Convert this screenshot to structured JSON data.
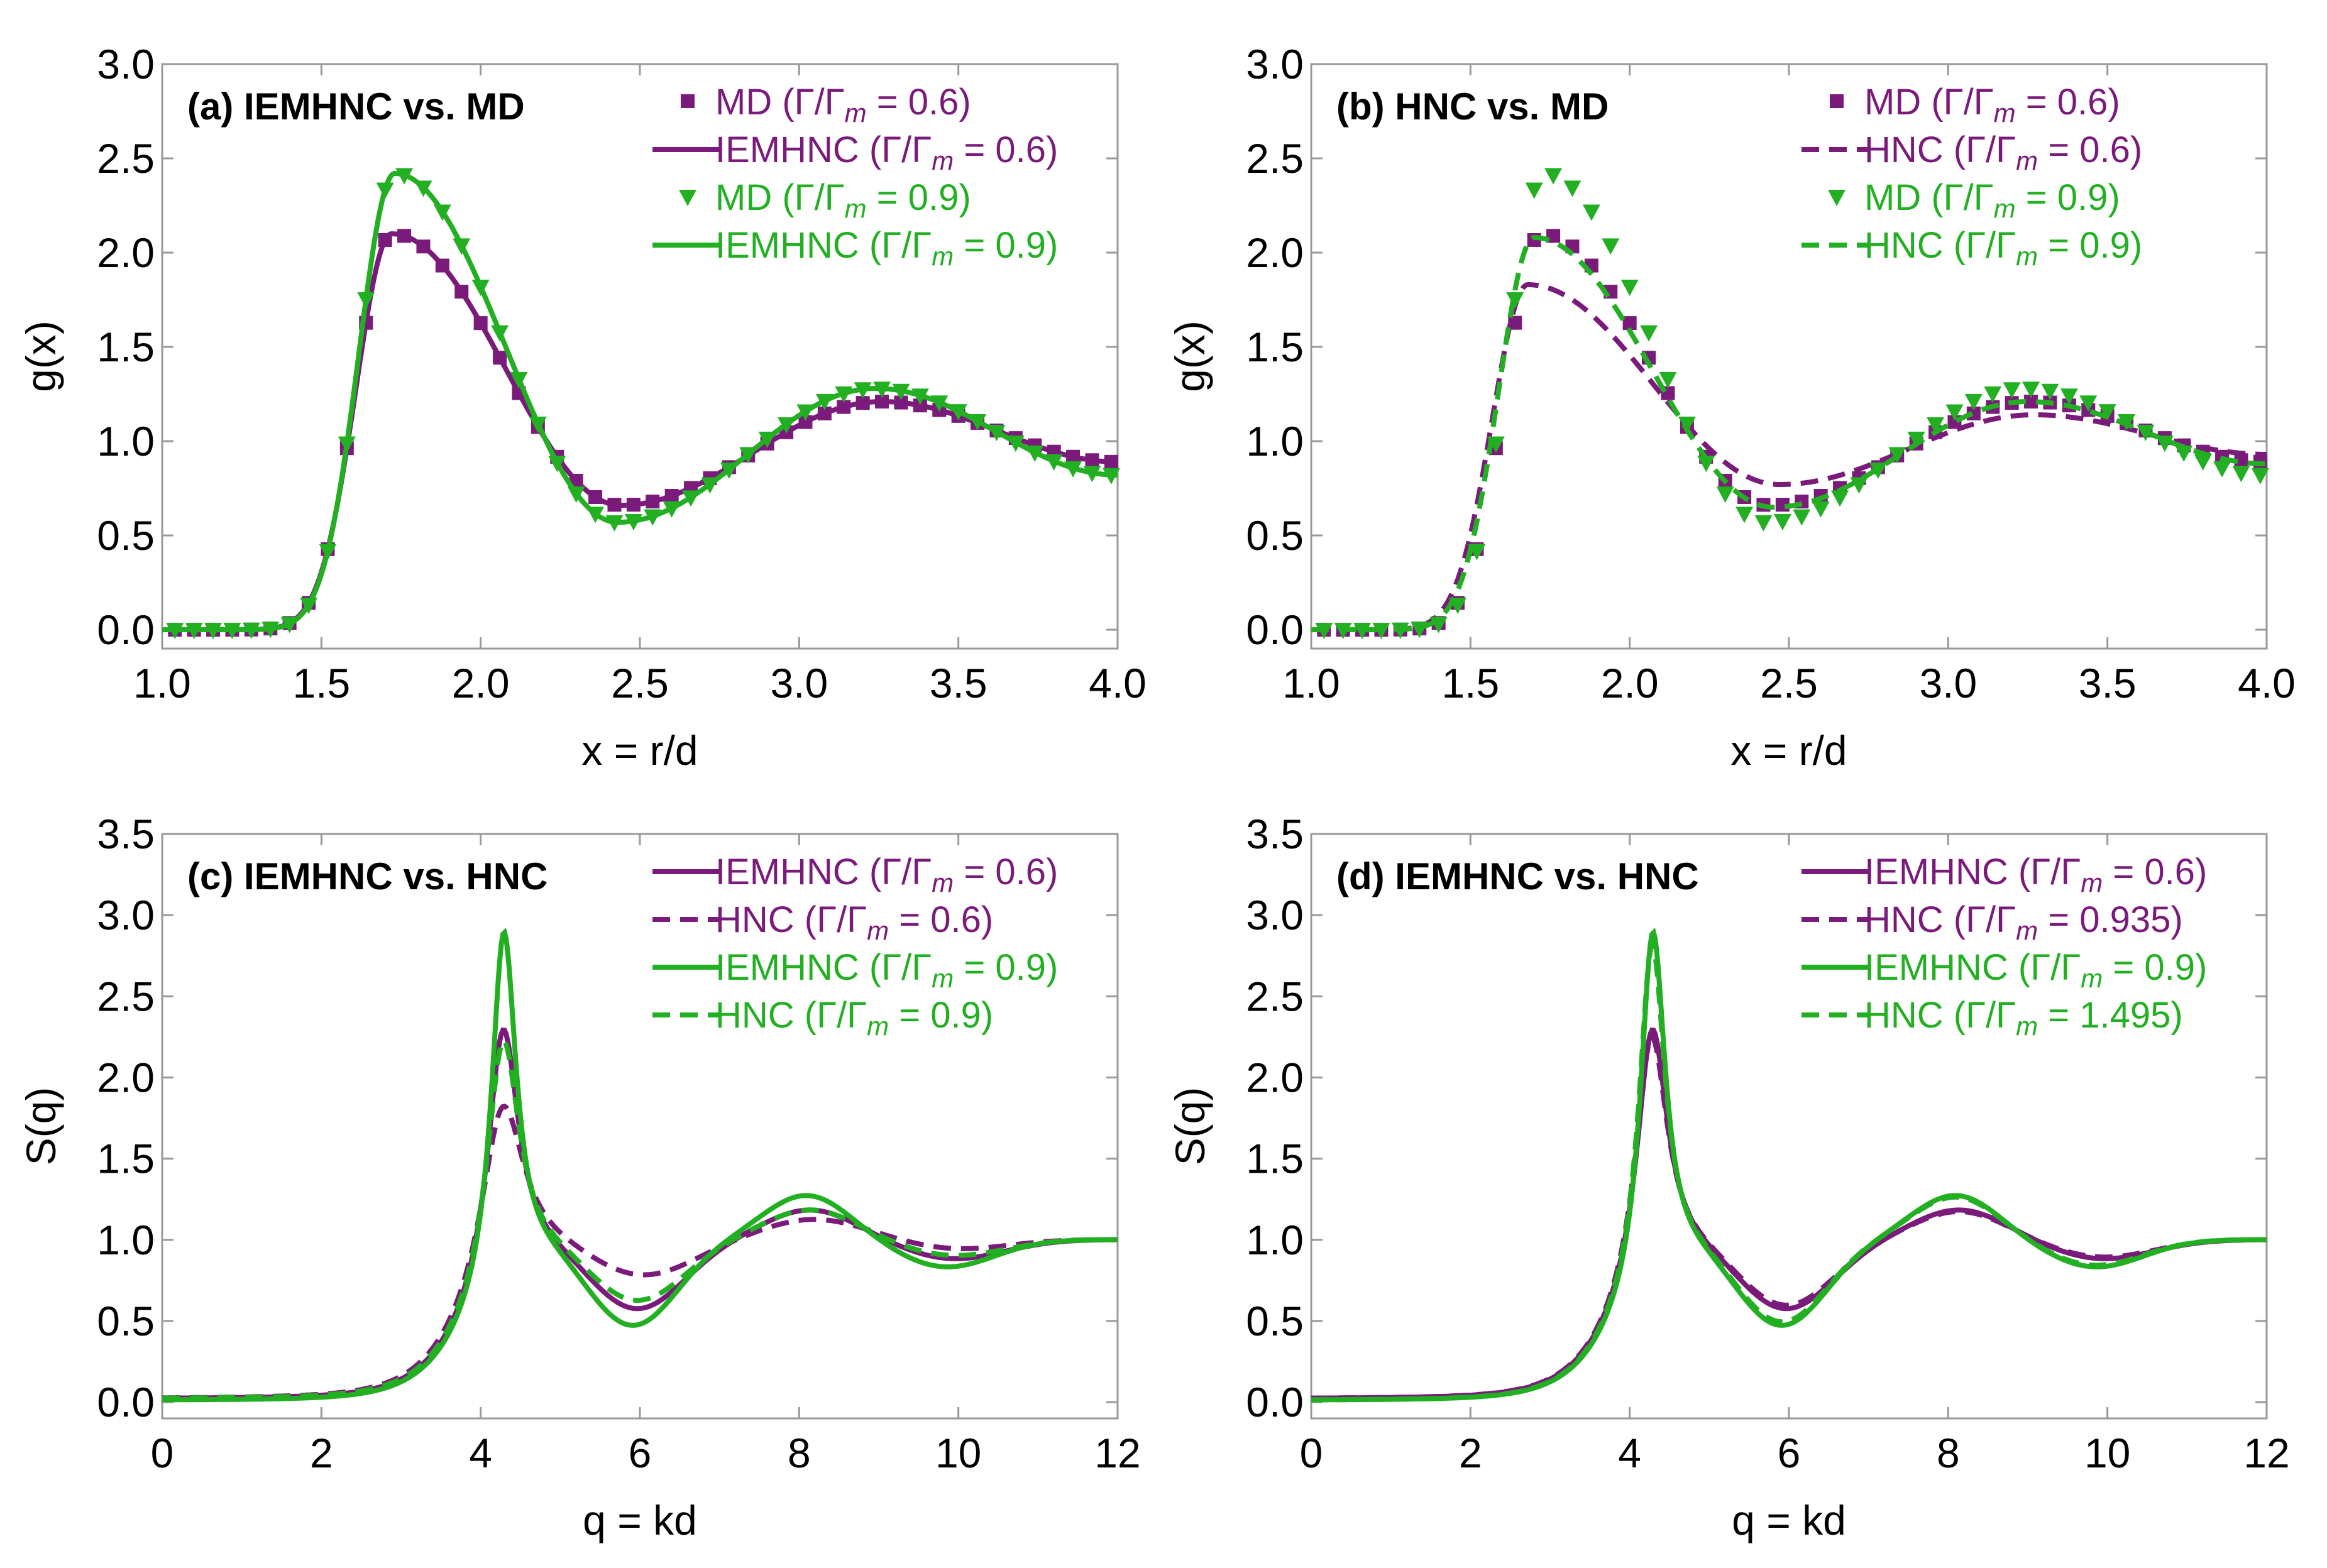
{
  "colors": {
    "purple": "#7a1a7a",
    "green": "#22b022"
  },
  "chart_data": [
    {
      "id": "a",
      "type": "line",
      "title": "(a) IEMHNC vs. MD",
      "xlabel": "x = r/d",
      "ylabel": "g(x)",
      "xlim": [
        1.0,
        4.0
      ],
      "ylim": [
        -0.1,
        3.0
      ],
      "xticks": [
        "1.0",
        "1.5",
        "2.0",
        "2.5",
        "3.0",
        "3.5",
        "4.0"
      ],
      "yticks": [
        "0.0",
        "0.5",
        "1.0",
        "1.5",
        "2.0",
        "2.5",
        "3.0"
      ],
      "legend": [
        {
          "pre": "MD (Γ/Γ",
          "post": " = 0.6)",
          "color": "purple",
          "style": "square"
        },
        {
          "pre": "IEMHNC (Γ/Γ",
          "post": " = 0.6)",
          "color": "purple",
          "style": "solid"
        },
        {
          "pre": "MD (Γ/Γ",
          "post": " = 0.9)",
          "color": "green",
          "style": "triangle"
        },
        {
          "pre": "IEMHNC (Γ/Γ",
          "post": " = 0.9)",
          "color": "green",
          "style": "solid"
        }
      ],
      "series": [
        {
          "name": "MD (Γ/Γm = 0.6)",
          "color": "purple",
          "style": "square",
          "peak": {
            "x0": 1.5,
            "x1": 1.72,
            "y1": 2.1,
            "m": 1.16,
            "x2": 2.44,
            "y2": 0.66,
            "x3": 3.26,
            "y3": 1.21,
            "x4": 4.0,
            "y4": 0.89,
            "k": 9.5
          }
        },
        {
          "name": "IEMHNC (Γ/Γm = 0.6)",
          "color": "purple",
          "style": "solid",
          "peak": {
            "x0": 1.5,
            "x1": 1.72,
            "y1": 2.1,
            "m": 1.16,
            "x2": 2.44,
            "y2": 0.66,
            "x3": 3.26,
            "y3": 1.21,
            "x4": 4.0,
            "y4": 0.89,
            "k": 9.5
          }
        },
        {
          "name": "MD (Γ/Γm = 0.9)",
          "color": "green",
          "style": "triangle",
          "peak": {
            "x0": 1.56,
            "x1": 1.73,
            "y1": 2.42,
            "m": 1.3,
            "x2": 2.43,
            "y2": 0.57,
            "x3": 3.24,
            "y3": 1.28,
            "x4": 4.0,
            "y4": 0.82,
            "k": 11.5
          }
        },
        {
          "name": "IEMHNC (Γ/Γm = 0.9)",
          "color": "green",
          "style": "solid",
          "peak": {
            "x0": 1.56,
            "x1": 1.73,
            "y1": 2.42,
            "m": 1.3,
            "x2": 2.43,
            "y2": 0.57,
            "x3": 3.24,
            "y3": 1.28,
            "x4": 4.0,
            "y4": 0.82,
            "k": 11.5
          }
        }
      ]
    },
    {
      "id": "b",
      "type": "line",
      "title": "(b) HNC vs. MD",
      "xlabel": "x = r/d",
      "ylabel": "g(x)",
      "xlim": [
        1.0,
        4.0
      ],
      "ylim": [
        -0.1,
        3.0
      ],
      "xticks": [
        "1.0",
        "1.5",
        "2.0",
        "2.5",
        "3.0",
        "3.5",
        "4.0"
      ],
      "yticks": [
        "0.0",
        "0.5",
        "1.0",
        "1.5",
        "2.0",
        "2.5",
        "3.0"
      ],
      "legend": [
        {
          "pre": "MD (Γ/Γ",
          "post": " = 0.6)",
          "color": "purple",
          "style": "square"
        },
        {
          "pre": "HNC (Γ/Γ",
          "post": " = 0.6)",
          "color": "purple",
          "style": "dashed"
        },
        {
          "pre": "MD (Γ/Γ",
          "post": " = 0.9)",
          "color": "green",
          "style": "triangle"
        },
        {
          "pre": "HNC (Γ/Γ",
          "post": " = 0.9)",
          "color": "green",
          "style": "dashed"
        }
      ],
      "series": [
        {
          "name": "MD (Γ/Γm = 0.6)",
          "color": "purple",
          "style": "square",
          "peak": {
            "x0": 1.5,
            "x1": 1.72,
            "y1": 2.1,
            "m": 1.16,
            "x2": 2.44,
            "y2": 0.66,
            "x3": 3.26,
            "y3": 1.21,
            "x4": 4.0,
            "y4": 0.89,
            "k": 9.5
          }
        },
        {
          "name": "HNC (Γ/Γm = 0.6)",
          "color": "purple",
          "style": "dashed",
          "peak": {
            "x0": 1.42,
            "x1": 1.68,
            "y1": 1.83,
            "m": 1.08,
            "x2": 2.47,
            "y2": 0.77,
            "x3": 3.27,
            "y3": 1.14,
            "x4": 4.0,
            "y4": 0.93,
            "k": 7.5
          }
        },
        {
          "name": "MD (Γ/Γm = 0.9)",
          "color": "green",
          "style": "triangle",
          "peak": {
            "x0": 1.56,
            "x1": 1.73,
            "y1": 2.42,
            "m": 1.3,
            "x2": 2.43,
            "y2": 0.57,
            "x3": 3.24,
            "y3": 1.28,
            "x4": 4.0,
            "y4": 0.82,
            "k": 11.5
          }
        },
        {
          "name": "HNC (Γ/Γm = 0.9)",
          "color": "green",
          "style": "dashed",
          "peak": {
            "x0": 1.5,
            "x1": 1.7,
            "y1": 2.08,
            "m": 1.17,
            "x2": 2.45,
            "y2": 0.65,
            "x3": 3.25,
            "y3": 1.21,
            "x4": 4.0,
            "y4": 0.88,
            "k": 9.5
          }
        }
      ]
    },
    {
      "id": "c",
      "type": "line",
      "title": "(c) IEMHNC vs. HNC",
      "xlabel": "q = kd",
      "ylabel": "S(q)",
      "xlim": [
        0,
        12
      ],
      "ylim": [
        -0.1,
        3.5
      ],
      "xticks": [
        "0",
        "2",
        "4",
        "6",
        "8",
        "10",
        "12"
      ],
      "yticks": [
        "0.0",
        "0.5",
        "1.0",
        "1.5",
        "2.0",
        "2.5",
        "3.0",
        "3.5"
      ],
      "legend": [
        {
          "pre": "IEMHNC (Γ/Γ",
          "post": " = 0.6)",
          "color": "purple",
          "style": "solid"
        },
        {
          "pre": "HNC (Γ/Γ",
          "post": " = 0.6)",
          "color": "purple",
          "style": "dashed"
        },
        {
          "pre": "IEMHNC (Γ/Γ",
          "post": " = 0.9)",
          "color": "green",
          "style": "solid"
        },
        {
          "pre": "HNC (Γ/Γ",
          "post": " = 0.9)",
          "color": "green",
          "style": "dashed"
        }
      ],
      "series": [
        {
          "name": "IEMHNC (Γ/Γm = 0.6)",
          "color": "purple",
          "style": "solid",
          "sq": {
            "s0": 0.02,
            "A1": 1.62,
            "c1": 4.28,
            "w1": 0.24,
            "A2": 0.45,
            "c2": 5.95,
            "w2": 0.85,
            "A3": 0.18,
            "c3": 8.15,
            "w3": 0.8,
            "A4": 0.12,
            "c4": 9.95,
            "w4": 0.9,
            "g0": 0.15
          }
        },
        {
          "name": "HNC (Γ/Γm = 0.6)",
          "color": "purple",
          "style": "dashed",
          "sq": {
            "s0": 0.02,
            "A1": 1.15,
            "c1": 4.27,
            "w1": 0.33,
            "A2": 0.25,
            "c2": 6.0,
            "w2": 0.95,
            "A3": 0.12,
            "c3": 8.2,
            "w3": 0.9,
            "A4": 0.06,
            "c4": 10.0,
            "w4": 0.9,
            "g0": 0.15
          }
        },
        {
          "name": "IEMHNC (Γ/Γm = 0.9)",
          "color": "green",
          "style": "solid",
          "sq": {
            "s0": 0.01,
            "A1": 2.22,
            "c1": 4.29,
            "w1": 0.19,
            "A2": 0.55,
            "c2": 5.9,
            "w2": 0.8,
            "A3": 0.27,
            "c3": 8.1,
            "w3": 0.75,
            "A4": 0.17,
            "c4": 9.85,
            "w4": 0.85,
            "g0": 0.15
          }
        },
        {
          "name": "HNC (Γ/Γm = 0.9)",
          "color": "green",
          "style": "dashed",
          "sq": {
            "s0": 0.02,
            "A1": 1.55,
            "c1": 4.28,
            "w1": 0.25,
            "A2": 0.4,
            "c2": 5.95,
            "w2": 0.85,
            "A3": 0.18,
            "c3": 8.15,
            "w3": 0.8,
            "A4": 0.1,
            "c4": 9.95,
            "w4": 0.9,
            "g0": 0.15
          }
        }
      ]
    },
    {
      "id": "d",
      "type": "line",
      "title": "(d) IEMHNC vs. HNC",
      "xlabel": "q = kd",
      "ylabel": "S(q)",
      "xlim": [
        0,
        12
      ],
      "ylim": [
        -0.1,
        3.5
      ],
      "xticks": [
        "0",
        "2",
        "4",
        "6",
        "8",
        "10",
        "12"
      ],
      "yticks": [
        "0.0",
        "0.5",
        "1.0",
        "1.5",
        "2.0",
        "2.5",
        "3.0",
        "3.5"
      ],
      "legend": [
        {
          "pre": "IEMHNC (Γ/Γ",
          "post": " = 0.6)",
          "color": "purple",
          "style": "solid"
        },
        {
          "pre": "HNC (Γ/Γ",
          "post": " = 0.935)",
          "color": "purple",
          "style": "dashed"
        },
        {
          "pre": "IEMHNC (Γ/Γ",
          "post": " = 0.9)",
          "color": "green",
          "style": "solid"
        },
        {
          "pre": "HNC (Γ/Γ",
          "post": " = 1.495)",
          "color": "green",
          "style": "dashed"
        }
      ],
      "series": [
        {
          "name": "IEMHNC (Γ/Γm = 0.6)",
          "color": "purple",
          "style": "solid",
          "sq": {
            "s0": 0.02,
            "A1": 1.62,
            "c1": 4.28,
            "w1": 0.24,
            "A2": 0.45,
            "c2": 5.95,
            "w2": 0.85,
            "A3": 0.18,
            "c3": 8.15,
            "w3": 0.8,
            "A4": 0.12,
            "c4": 9.95,
            "w4": 0.9,
            "g0": 0.15
          }
        },
        {
          "name": "HNC (Γ/Γm = 0.935)",
          "color": "purple",
          "style": "dashed",
          "sq": {
            "s0": 0.02,
            "A1": 1.58,
            "c1": 4.27,
            "w1": 0.25,
            "A2": 0.43,
            "c2": 5.95,
            "w2": 0.85,
            "A3": 0.17,
            "c3": 8.15,
            "w3": 0.8,
            "A4": 0.11,
            "c4": 9.95,
            "w4": 0.9,
            "g0": 0.15
          }
        },
        {
          "name": "IEMHNC (Γ/Γm = 0.9)",
          "color": "green",
          "style": "solid",
          "sq": {
            "s0": 0.01,
            "A1": 2.22,
            "c1": 4.29,
            "w1": 0.19,
            "A2": 0.55,
            "c2": 5.9,
            "w2": 0.8,
            "A3": 0.27,
            "c3": 8.1,
            "w3": 0.75,
            "A4": 0.17,
            "c4": 9.85,
            "w4": 0.85,
            "g0": 0.15
          }
        },
        {
          "name": "HNC (Γ/Γm = 1.495)",
          "color": "green",
          "style": "dashed",
          "sq": {
            "s0": 0.01,
            "A1": 2.15,
            "c1": 4.28,
            "w1": 0.2,
            "A2": 0.53,
            "c2": 5.9,
            "w2": 0.8,
            "A3": 0.26,
            "c3": 8.1,
            "w3": 0.75,
            "A4": 0.16,
            "c4": 9.85,
            "w4": 0.85,
            "g0": 0.15
          }
        }
      ]
    }
  ]
}
